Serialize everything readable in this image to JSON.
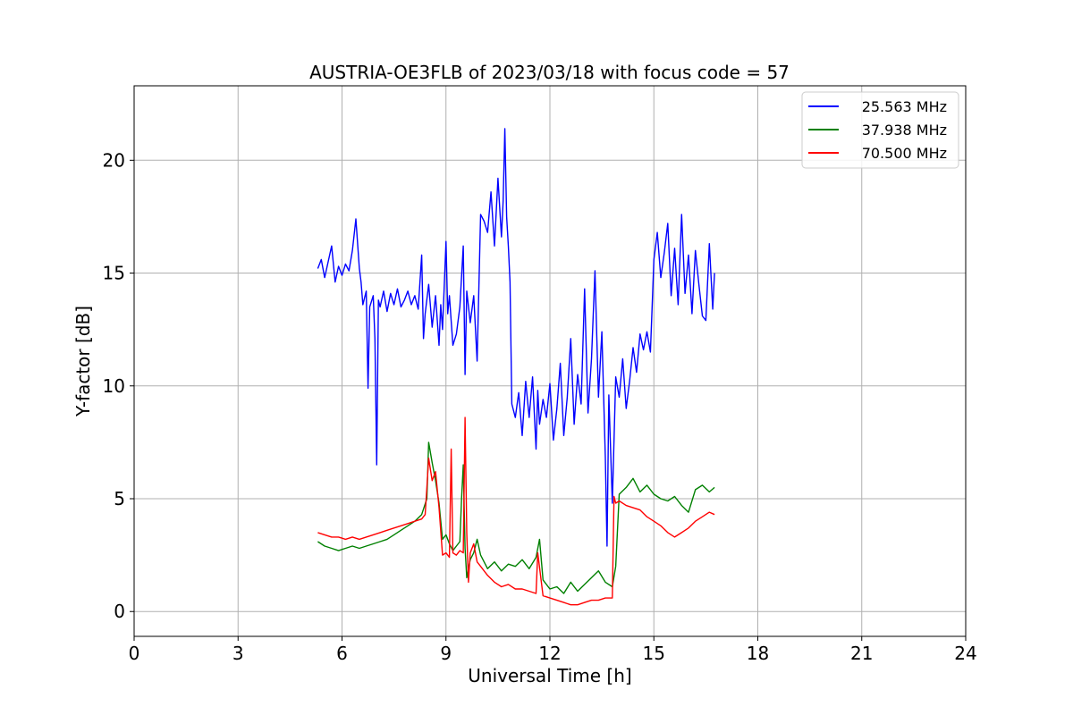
{
  "chart_data": {
    "type": "line",
    "title": "AUSTRIA-OE3FLB of 2023/03/18 with focus code = 57",
    "xlabel": "Universal Time [h]",
    "ylabel": "Y-factor [dB]",
    "xlim": [
      0,
      24
    ],
    "ylim": [
      -1.1,
      23.3
    ],
    "xticks": [
      0,
      3,
      6,
      9,
      12,
      15,
      18,
      21,
      24
    ],
    "yticks": [
      0,
      5,
      10,
      15,
      20
    ],
    "grid": true,
    "legend_position": "top-right",
    "series": [
      {
        "name": "25.563 MHz",
        "color": "#0000ff",
        "x": [
          5.3,
          5.4,
          5.5,
          5.6,
          5.7,
          5.8,
          5.9,
          6.0,
          6.1,
          6.2,
          6.3,
          6.4,
          6.5,
          6.55,
          6.6,
          6.7,
          6.75,
          6.8,
          6.9,
          6.95,
          7.0,
          7.05,
          7.1,
          7.2,
          7.3,
          7.4,
          7.5,
          7.6,
          7.7,
          7.8,
          7.9,
          8.0,
          8.1,
          8.2,
          8.3,
          8.35,
          8.4,
          8.5,
          8.6,
          8.7,
          8.8,
          8.85,
          8.9,
          9.0,
          9.05,
          9.1,
          9.2,
          9.3,
          9.4,
          9.5,
          9.55,
          9.6,
          9.7,
          9.8,
          9.9,
          10.0,
          10.1,
          10.2,
          10.3,
          10.4,
          10.5,
          10.6,
          10.65,
          10.7,
          10.75,
          10.8,
          10.85,
          10.9,
          11.0,
          11.1,
          11.2,
          11.3,
          11.4,
          11.5,
          11.6,
          11.65,
          11.7,
          11.8,
          11.9,
          12.0,
          12.1,
          12.2,
          12.3,
          12.4,
          12.5,
          12.6,
          12.7,
          12.8,
          12.9,
          13.0,
          13.1,
          13.2,
          13.3,
          13.4,
          13.5,
          13.6,
          13.65,
          13.7,
          13.8,
          13.9,
          14.0,
          14.1,
          14.2,
          14.3,
          14.4,
          14.5,
          14.6,
          14.7,
          14.8,
          14.9,
          15.0,
          15.1,
          15.2,
          15.3,
          15.4,
          15.5,
          15.6,
          15.7,
          15.8,
          15.9,
          16.0,
          16.1,
          16.2,
          16.3,
          16.4,
          16.5,
          16.6,
          16.7,
          16.75
        ],
        "y": [
          15.2,
          15.6,
          14.8,
          15.5,
          16.2,
          14.6,
          15.3,
          14.9,
          15.4,
          15.1,
          16.0,
          17.4,
          15.2,
          14.6,
          13.6,
          14.2,
          9.9,
          13.5,
          14.0,
          12.1,
          6.5,
          13.8,
          13.5,
          14.2,
          13.3,
          14.1,
          13.6,
          14.3,
          13.5,
          13.8,
          14.2,
          13.6,
          14.0,
          13.4,
          15.8,
          12.1,
          13.2,
          14.5,
          12.6,
          14.0,
          11.8,
          13.6,
          12.5,
          16.4,
          13.2,
          14.0,
          11.8,
          12.3,
          13.5,
          16.2,
          10.5,
          14.2,
          12.8,
          14.0,
          11.1,
          17.6,
          17.3,
          16.8,
          18.6,
          16.2,
          19.2,
          16.6,
          18.2,
          21.4,
          17.5,
          16.2,
          14.6,
          9.2,
          8.6,
          9.7,
          7.8,
          10.2,
          8.6,
          10.4,
          7.2,
          9.8,
          8.3,
          9.4,
          8.6,
          10.1,
          7.6,
          9.0,
          11.0,
          7.8,
          9.5,
          12.1,
          8.3,
          10.5,
          9.2,
          14.3,
          8.8,
          11.2,
          15.1,
          9.5,
          12.4,
          6.8,
          2.9,
          9.6,
          4.8,
          10.4,
          9.5,
          11.2,
          9.0,
          10.2,
          11.7,
          10.6,
          12.3,
          11.6,
          12.4,
          11.5,
          15.6,
          16.8,
          14.8,
          15.9,
          17.2,
          14.0,
          16.1,
          13.6,
          17.6,
          14.1,
          15.8,
          13.2,
          16.0,
          14.5,
          13.1,
          12.9,
          16.3,
          13.4,
          15.0
        ]
      },
      {
        "name": "37.938 MHz",
        "color": "#008000",
        "x": [
          5.3,
          5.5,
          5.7,
          5.9,
          6.1,
          6.3,
          6.5,
          6.7,
          6.9,
          7.1,
          7.3,
          7.5,
          7.7,
          7.9,
          8.1,
          8.3,
          8.45,
          8.5,
          8.6,
          8.7,
          8.8,
          8.9,
          9.0,
          9.1,
          9.2,
          9.3,
          9.4,
          9.45,
          9.5,
          9.55,
          9.6,
          9.7,
          9.8,
          9.9,
          10.0,
          10.1,
          10.2,
          10.4,
          10.6,
          10.8,
          11.0,
          11.2,
          11.4,
          11.6,
          11.7,
          11.8,
          12.0,
          12.2,
          12.4,
          12.6,
          12.8,
          13.0,
          13.2,
          13.4,
          13.6,
          13.8,
          13.9,
          14.0,
          14.2,
          14.4,
          14.6,
          14.8,
          15.0,
          15.2,
          15.4,
          15.6,
          15.8,
          16.0,
          16.2,
          16.4,
          16.6,
          16.75
        ],
        "y": [
          3.1,
          2.9,
          2.8,
          2.7,
          2.8,
          2.9,
          2.8,
          2.9,
          3.0,
          3.1,
          3.2,
          3.4,
          3.6,
          3.8,
          4.0,
          4.3,
          5.0,
          7.5,
          6.6,
          5.8,
          4.8,
          3.2,
          3.4,
          3.0,
          2.7,
          2.9,
          3.1,
          5.0,
          6.5,
          2.8,
          1.5,
          2.3,
          2.6,
          3.2,
          2.5,
          2.2,
          1.9,
          2.2,
          1.8,
          2.1,
          2.0,
          2.3,
          1.9,
          2.4,
          3.2,
          1.4,
          1.0,
          1.1,
          0.8,
          1.3,
          0.9,
          1.2,
          1.5,
          1.8,
          1.3,
          1.1,
          2.0,
          5.2,
          5.5,
          5.9,
          5.3,
          5.6,
          5.2,
          5.0,
          4.9,
          5.1,
          4.7,
          4.4,
          5.4,
          5.6,
          5.3,
          5.5
        ]
      },
      {
        "name": "70.500 MHz",
        "color": "#ff0000",
        "x": [
          5.3,
          5.5,
          5.7,
          5.9,
          6.1,
          6.3,
          6.5,
          6.7,
          6.9,
          7.1,
          7.3,
          7.5,
          7.7,
          7.9,
          8.1,
          8.3,
          8.4,
          8.45,
          8.5,
          8.6,
          8.7,
          8.8,
          8.9,
          9.0,
          9.1,
          9.15,
          9.2,
          9.3,
          9.4,
          9.5,
          9.55,
          9.6,
          9.65,
          9.7,
          9.8,
          9.9,
          10.0,
          10.2,
          10.4,
          10.6,
          10.8,
          11.0,
          11.2,
          11.4,
          11.6,
          11.65,
          11.8,
          12.0,
          12.2,
          12.4,
          12.6,
          12.8,
          13.0,
          13.2,
          13.4,
          13.6,
          13.8,
          13.85,
          13.9,
          14.0,
          14.2,
          14.4,
          14.6,
          14.8,
          15.0,
          15.2,
          15.4,
          15.6,
          15.8,
          16.0,
          16.2,
          16.4,
          16.6,
          16.75
        ],
        "y": [
          3.5,
          3.4,
          3.3,
          3.3,
          3.2,
          3.3,
          3.2,
          3.3,
          3.4,
          3.5,
          3.6,
          3.7,
          3.8,
          3.9,
          4.0,
          4.1,
          4.3,
          5.5,
          6.8,
          5.8,
          6.2,
          4.6,
          2.5,
          2.6,
          2.4,
          7.2,
          2.6,
          2.5,
          2.7,
          2.6,
          8.6,
          3.5,
          1.3,
          2.6,
          3.0,
          2.2,
          2.0,
          1.6,
          1.3,
          1.1,
          1.2,
          1.0,
          1.0,
          0.9,
          0.8,
          2.6,
          0.7,
          0.6,
          0.5,
          0.4,
          0.3,
          0.3,
          0.4,
          0.5,
          0.5,
          0.6,
          0.6,
          5.1,
          4.8,
          4.9,
          4.7,
          4.6,
          4.5,
          4.2,
          4.0,
          3.8,
          3.5,
          3.3,
          3.5,
          3.7,
          4.0,
          4.2,
          4.4,
          4.3
        ]
      }
    ]
  }
}
